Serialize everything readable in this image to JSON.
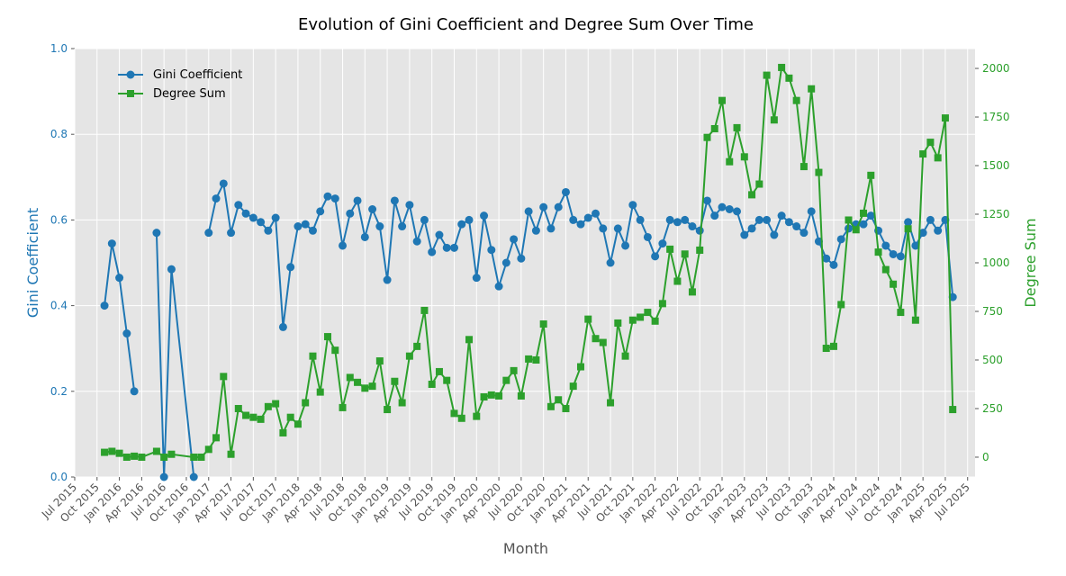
{
  "chart_data": {
    "type": "line",
    "title": "Evolution of Gini Coefficient and Degree Sum Over Time",
    "xlabel": "Month",
    "ylabel": "Gini Coefficient",
    "y2label": "Degree Sum",
    "x": [
      "2015-11",
      "2015-12",
      "2016-01",
      "2016-02",
      "2016-03",
      "2016-04",
      "2016-06",
      "2016-07",
      "2016-08",
      "2016-11",
      "2016-12",
      "2017-01",
      "2017-02",
      "2017-03",
      "2017-04",
      "2017-05",
      "2017-06",
      "2017-07",
      "2017-08",
      "2017-09",
      "2017-10",
      "2017-11",
      "2017-12",
      "2018-01",
      "2018-02",
      "2018-03",
      "2018-04",
      "2018-05",
      "2018-06",
      "2018-07",
      "2018-08",
      "2018-09",
      "2018-10",
      "2018-11",
      "2018-12",
      "2019-01",
      "2019-02",
      "2019-03",
      "2019-04",
      "2019-05",
      "2019-06",
      "2019-07",
      "2019-08",
      "2019-09",
      "2019-10",
      "2019-11",
      "2019-12",
      "2020-01",
      "2020-02",
      "2020-03",
      "2020-04",
      "2020-05",
      "2020-06",
      "2020-07",
      "2020-08",
      "2020-09",
      "2020-10",
      "2020-11",
      "2020-12",
      "2021-01",
      "2021-02",
      "2021-03",
      "2021-04",
      "2021-05",
      "2021-06",
      "2021-07",
      "2021-08",
      "2021-09",
      "2021-10",
      "2021-11",
      "2021-12",
      "2022-01",
      "2022-02",
      "2022-03",
      "2022-04",
      "2022-05",
      "2022-06",
      "2022-07",
      "2022-08",
      "2022-09",
      "2022-10",
      "2022-11",
      "2022-12",
      "2023-01",
      "2023-02",
      "2023-03",
      "2023-04",
      "2023-05",
      "2023-06",
      "2023-07",
      "2023-08",
      "2023-09",
      "2023-10",
      "2023-11",
      "2023-12",
      "2024-01",
      "2024-02",
      "2024-03",
      "2024-04",
      "2024-05",
      "2024-06",
      "2024-07",
      "2024-08",
      "2024-09",
      "2024-10",
      "2024-11",
      "2024-12",
      "2025-01",
      "2025-02",
      "2025-03",
      "2025-04",
      "2025-05"
    ],
    "series": [
      {
        "name": "Gini Coefficient",
        "color": "#1f77b4",
        "marker": "circle",
        "axis": "y",
        "values": [
          0.4,
          0.545,
          0.465,
          0.335,
          0.2,
          null,
          0.57,
          0.0,
          0.485,
          0.0,
          null,
          0.57,
          0.65,
          0.685,
          0.57,
          0.635,
          0.615,
          0.605,
          0.595,
          0.575,
          0.605,
          0.35,
          0.49,
          0.585,
          0.59,
          0.575,
          0.62,
          0.655,
          0.65,
          0.54,
          0.615,
          0.645,
          0.56,
          0.625,
          0.585,
          0.46,
          0.645,
          0.585,
          0.635,
          0.55,
          0.6,
          0.525,
          0.565,
          0.535,
          0.535,
          0.59,
          0.6,
          0.465,
          0.61,
          0.53,
          0.445,
          0.5,
          0.555,
          0.51,
          0.62,
          0.575,
          0.63,
          0.58,
          0.63,
          0.665,
          0.6,
          0.59,
          0.605,
          0.615,
          0.58,
          0.5,
          0.58,
          0.54,
          0.635,
          0.6,
          0.56,
          0.515,
          0.545,
          0.6,
          0.595,
          0.6,
          0.585,
          0.575,
          0.645,
          0.61,
          0.63,
          0.625,
          0.62,
          0.565,
          0.58,
          0.6,
          0.6,
          0.565,
          0.61,
          0.595,
          0.585,
          0.57,
          0.62,
          0.55,
          0.51,
          0.495,
          0.555,
          0.58,
          0.59,
          0.59,
          0.61,
          0.575,
          0.54,
          0.52,
          0.515,
          0.595,
          0.54,
          0.57,
          0.6,
          0.575,
          0.6,
          0.42
        ]
      },
      {
        "name": "Degree Sum",
        "color": "#2ca02c",
        "marker": "square",
        "axis": "y2",
        "values": [
          25,
          30,
          20,
          0,
          5,
          0,
          30,
          0,
          15,
          0,
          0,
          40,
          100,
          415,
          15,
          250,
          215,
          205,
          195,
          260,
          275,
          125,
          205,
          170,
          280,
          520,
          335,
          620,
          550,
          255,
          410,
          385,
          355,
          365,
          495,
          245,
          390,
          280,
          520,
          570,
          755,
          375,
          440,
          395,
          225,
          200,
          605,
          210,
          310,
          320,
          315,
          395,
          445,
          315,
          505,
          500,
          685,
          260,
          295,
          250,
          365,
          465,
          710,
          610,
          590,
          280,
          690,
          520,
          705,
          720,
          745,
          700,
          790,
          1070,
          905,
          1045,
          850,
          1065,
          1645,
          1690,
          1835,
          1520,
          1695,
          1545,
          1350,
          1405,
          1965,
          1735,
          2005,
          1950,
          1835,
          1495,
          1895,
          1465,
          560,
          570,
          785,
          1220,
          1170,
          1255,
          1450,
          1055,
          965,
          890,
          745,
          1175,
          705,
          1560,
          1620,
          1540,
          1745,
          245
        ]
      }
    ],
    "xlim": [
      "2015-07",
      "2025-08"
    ],
    "xticks": [
      {
        "value": "2015-07",
        "label": "Jul 2015"
      },
      {
        "value": "2015-10",
        "label": "Oct 2015"
      },
      {
        "value": "2016-01",
        "label": "Jan 2016"
      },
      {
        "value": "2016-04",
        "label": "Apr 2016"
      },
      {
        "value": "2016-07",
        "label": "Jul 2016"
      },
      {
        "value": "2016-10",
        "label": "Oct 2016"
      },
      {
        "value": "2017-01",
        "label": "Jan 2017"
      },
      {
        "value": "2017-04",
        "label": "Apr 2017"
      },
      {
        "value": "2017-07",
        "label": "Jul 2017"
      },
      {
        "value": "2017-10",
        "label": "Oct 2017"
      },
      {
        "value": "2018-01",
        "label": "Jan 2018"
      },
      {
        "value": "2018-04",
        "label": "Apr 2018"
      },
      {
        "value": "2018-07",
        "label": "Jul 2018"
      },
      {
        "value": "2018-10",
        "label": "Oct 2018"
      },
      {
        "value": "2019-01",
        "label": "Jan 2019"
      },
      {
        "value": "2019-04",
        "label": "Apr 2019"
      },
      {
        "value": "2019-07",
        "label": "Jul 2019"
      },
      {
        "value": "2019-10",
        "label": "Oct 2019"
      },
      {
        "value": "2020-01",
        "label": "Jan 2020"
      },
      {
        "value": "2020-04",
        "label": "Apr 2020"
      },
      {
        "value": "2020-07",
        "label": "Jul 2020"
      },
      {
        "value": "2020-10",
        "label": "Oct 2020"
      },
      {
        "value": "2021-01",
        "label": "Jan 2021"
      },
      {
        "value": "2021-04",
        "label": "Apr 2021"
      },
      {
        "value": "2021-07",
        "label": "Jul 2021"
      },
      {
        "value": "2021-10",
        "label": "Oct 2021"
      },
      {
        "value": "2022-01",
        "label": "Jan 2022"
      },
      {
        "value": "2022-04",
        "label": "Apr 2022"
      },
      {
        "value": "2022-07",
        "label": "Jul 2022"
      },
      {
        "value": "2022-10",
        "label": "Oct 2022"
      },
      {
        "value": "2023-01",
        "label": "Jan 2023"
      },
      {
        "value": "2023-04",
        "label": "Apr 2023"
      },
      {
        "value": "2023-07",
        "label": "Jul 2023"
      },
      {
        "value": "2023-10",
        "label": "Oct 2023"
      },
      {
        "value": "2024-01",
        "label": "Jan 2024"
      },
      {
        "value": "2024-04",
        "label": "Apr 2024"
      },
      {
        "value": "2024-07",
        "label": "Jul 2024"
      },
      {
        "value": "2024-10",
        "label": "Oct 2024"
      },
      {
        "value": "2025-01",
        "label": "Jan 2025"
      },
      {
        "value": "2025-04",
        "label": "Apr 2025"
      },
      {
        "value": "2025-07",
        "label": "Jul 2025"
      }
    ],
    "ylim": [
      0,
      1
    ],
    "yticks": [
      {
        "value": 0,
        "label": "0.0"
      },
      {
        "value": 0.2,
        "label": "0.2"
      },
      {
        "value": 0.4,
        "label": "0.4"
      },
      {
        "value": 0.6,
        "label": "0.6"
      },
      {
        "value": 0.8,
        "label": "0.8"
      },
      {
        "value": 1,
        "label": "1.0"
      }
    ],
    "y2lim": [
      -102,
      2102
    ],
    "y2ticks": [
      0,
      250,
      500,
      750,
      1000,
      1250,
      1500,
      1750,
      2000
    ],
    "grid": true,
    "legend": "upper left"
  }
}
